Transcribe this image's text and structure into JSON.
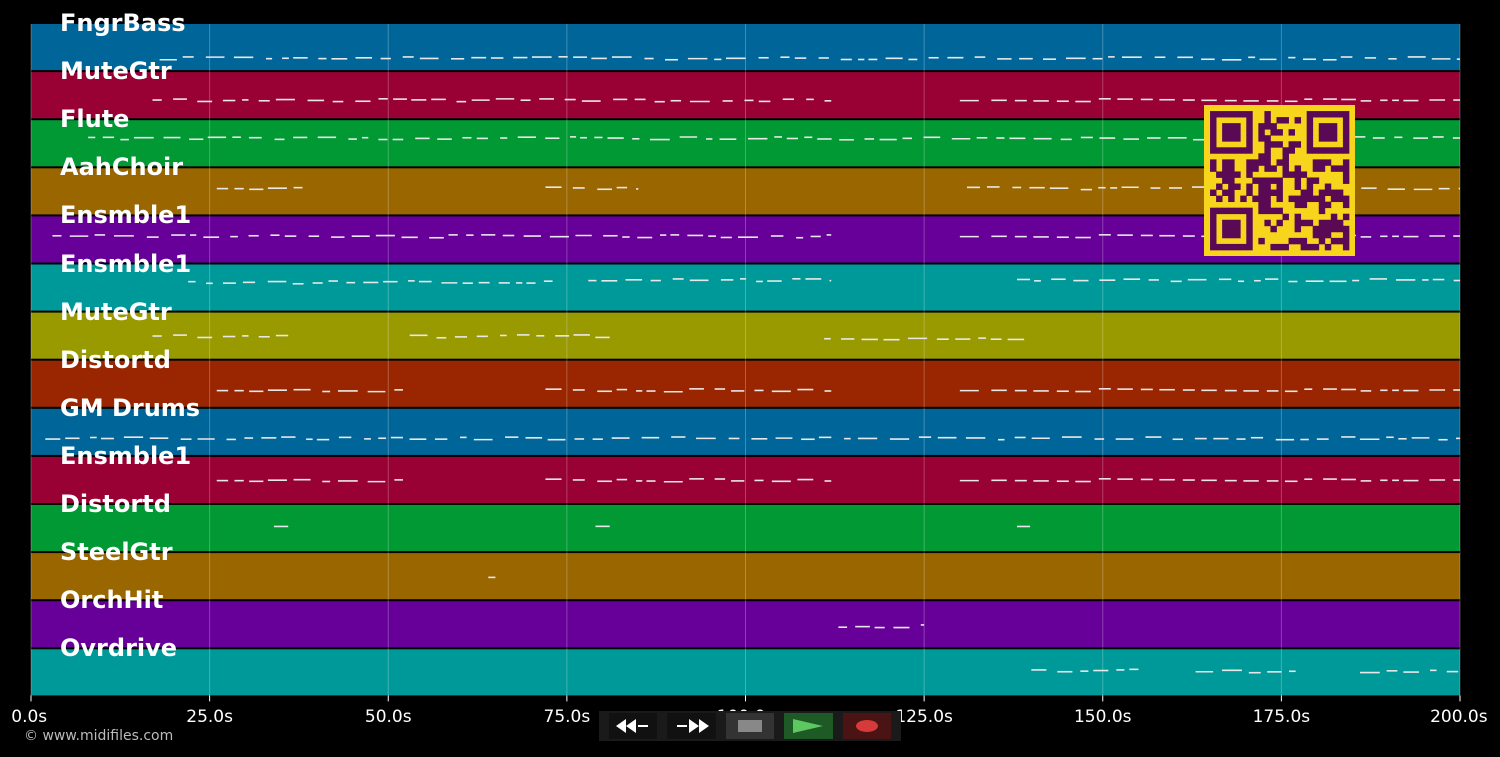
{
  "tracks": [
    {
      "name": "FngrBass",
      "color": "#006699"
    },
    {
      "name": "MuteGtr",
      "color": "#990033"
    },
    {
      "name": "Flute",
      "color": "#009933"
    },
    {
      "name": "AahChoir",
      "color": "#996600"
    },
    {
      "name": "Ensmble1",
      "color": "#660099"
    },
    {
      "name": "Ensmble1",
      "color": "#009999"
    },
    {
      "name": "MuteGtr",
      "color": "#999900"
    },
    {
      "name": "Distortd",
      "color": "#992600"
    },
    {
      "name": "GM Drums",
      "color": "#006699"
    },
    {
      "name": "Ensmble1",
      "color": "#990033"
    },
    {
      "name": "Distortd",
      "color": "#009933"
    },
    {
      "name": "SteelGtr",
      "color": "#996600"
    },
    {
      "name": "OrchHit",
      "color": "#660099"
    },
    {
      "name": "Ovrdrive",
      "color": "#009999"
    }
  ],
  "time_axis": {
    "range_seconds": [
      0,
      200
    ],
    "ticks": [
      "0.0s",
      "25.0s",
      "50.0s",
      "75.0s",
      "100.0s",
      "125.0s",
      "150.0s",
      "175.0s",
      "200.0s"
    ]
  },
  "transport": {
    "rewind_icon": "rewind-icon",
    "fast_forward_icon": "fast-forward-icon",
    "stop_icon": "stop-icon",
    "play_icon": "play-icon",
    "record_icon": "record-icon"
  },
  "copyright": "© www.midifiles.com",
  "qr_color": "#f7d51d",
  "qr_dark": "#5a0a55"
}
